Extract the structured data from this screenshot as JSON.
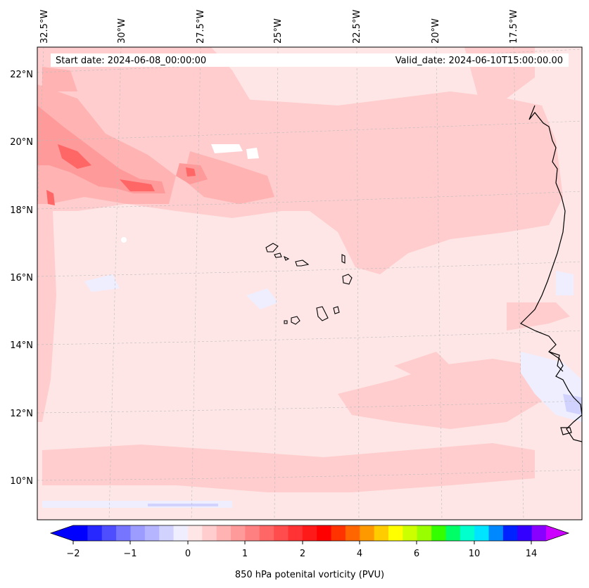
{
  "map": {
    "start_date": "Start date: 2024-06-08_00:00:00",
    "valid_date": "Valid_date: 2024-06-10T15:00:00.00",
    "lon_labels": [
      "32.5°W",
      "30°W",
      "27.5°W",
      "25°W",
      "22.5°W",
      "20°W",
      "17.5°W"
    ],
    "lat_labels": [
      "22°N",
      "20°N",
      "18°N",
      "16°N",
      "14°N",
      "12°N",
      "10°N"
    ]
  },
  "colorbar": {
    "label": "850 hPa potenital vorticity (PVU)",
    "tick_labels": [
      "−2",
      "−1",
      "0",
      "1",
      "2",
      "4",
      "6",
      "10",
      "14"
    ],
    "colors": [
      "#0000ff",
      "#2727ff",
      "#4e4eff",
      "#7575ff",
      "#9c9cff",
      "#b4b4ff",
      "#d2d2ff",
      "#eeeeff",
      "#ffe6e6",
      "#ffcdcd",
      "#ffb3b3",
      "#ff9a9a",
      "#ff8080",
      "#ff6666",
      "#ff4d4d",
      "#ff3333",
      "#ff1a1a",
      "#ff0000",
      "#ff3300",
      "#ff6600",
      "#ff9900",
      "#ffcc00",
      "#ffff00",
      "#ccff00",
      "#99ff00",
      "#33ff00",
      "#00ff66",
      "#00ffcc",
      "#00e5ff",
      "#0088ff",
      "#0022ff",
      "#3300ff",
      "#8800ff"
    ],
    "low_extend_color": "#0000ff",
    "high_extend_color": "#cc00ff"
  }
}
